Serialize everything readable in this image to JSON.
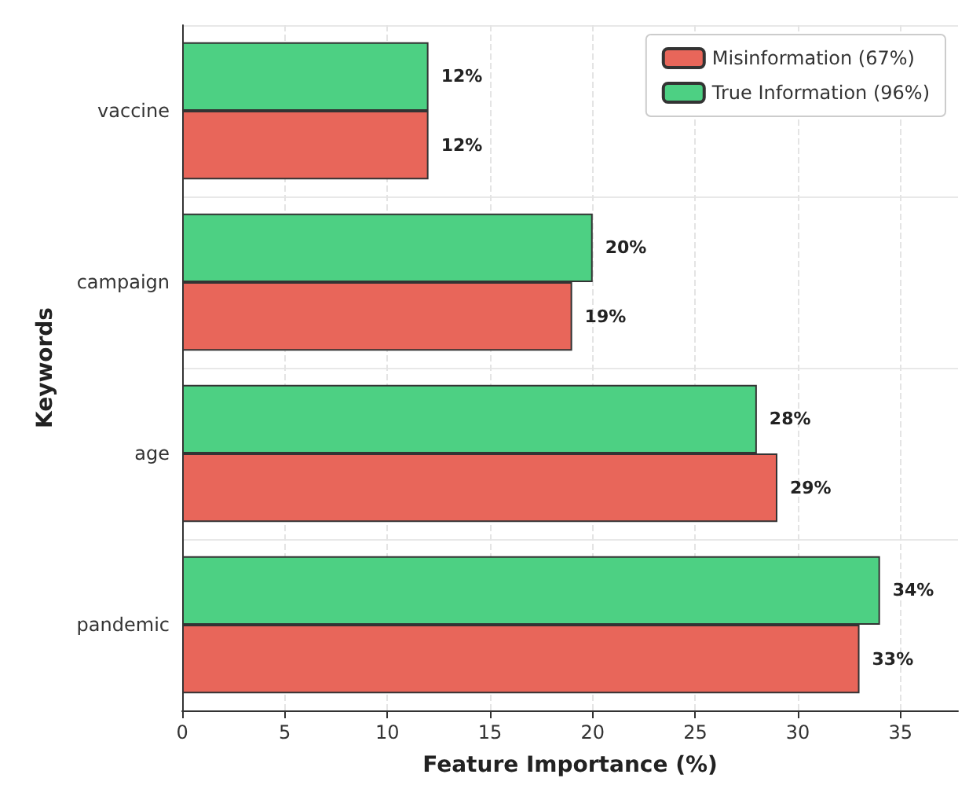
{
  "chart_data": {
    "type": "bar",
    "orientation": "horizontal",
    "xlabel": "Feature Importance (%)",
    "ylabel": "Keywords",
    "categories": [
      "vaccine",
      "campaign",
      "age",
      "pandemic"
    ],
    "series": [
      {
        "name": "Misinformation (67%)",
        "color": "#e8665a",
        "values": [
          12,
          19,
          29,
          33
        ],
        "value_labels": [
          "12%",
          "19%",
          "29%",
          "33%"
        ]
      },
      {
        "name": "True Information (96%)",
        "color": "#4dd083",
        "values": [
          12,
          20,
          28,
          34
        ],
        "value_labels": [
          "12%",
          "20%",
          "28%",
          "34%"
        ]
      }
    ],
    "xlim": [
      0,
      37.8
    ],
    "xticks": [
      0,
      5,
      10,
      15,
      20,
      25,
      30,
      35
    ],
    "grid": true,
    "legend": "top right"
  }
}
